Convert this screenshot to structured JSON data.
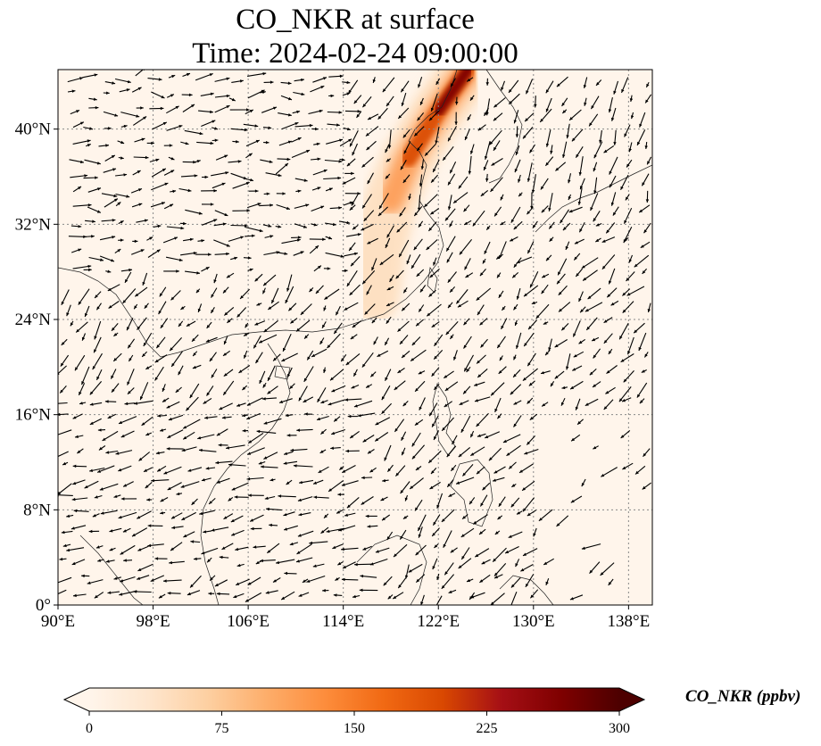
{
  "title": {
    "line1": "CO_NKR at surface",
    "line2": "Time: 2024-02-24 09:00:00"
  },
  "map": {
    "lon_range": [
      90,
      140
    ],
    "lat_range": [
      0,
      45
    ],
    "lon_ticks": [
      {
        "value": 90,
        "label": "90°E"
      },
      {
        "value": 98,
        "label": "98°E"
      },
      {
        "value": 106,
        "label": "106°E"
      },
      {
        "value": 114,
        "label": "114°E"
      },
      {
        "value": 122,
        "label": "122°E"
      },
      {
        "value": 130,
        "label": "130°E"
      },
      {
        "value": 138,
        "label": "138°E"
      }
    ],
    "lat_ticks": [
      {
        "value": 0,
        "label": "0°"
      },
      {
        "value": 8,
        "label": "8°N"
      },
      {
        "value": 16,
        "label": "16°N"
      },
      {
        "value": 24,
        "label": "24°N"
      },
      {
        "value": 32,
        "label": "32°N"
      },
      {
        "value": 40,
        "label": "40°N"
      }
    ],
    "gridlines": "dotted",
    "field_colors": [
      "#fff5eb",
      "#fdd0a2",
      "#fd8d3c",
      "#d94801",
      "#7f0000"
    ],
    "plume_band": [
      [
        124.5,
        45
      ],
      [
        122,
        41.5
      ],
      [
        119.5,
        37.5
      ],
      [
        118,
        34
      ],
      [
        117,
        30
      ],
      [
        116.5,
        26
      ]
    ]
  },
  "colorbar": {
    "label": "CO_NKR (ppbv)",
    "min": 0,
    "max": 300,
    "ticks": [
      {
        "value": 0,
        "label": "0"
      },
      {
        "value": 75,
        "label": "75"
      },
      {
        "value": 150,
        "label": "150"
      },
      {
        "value": 225,
        "label": "225"
      },
      {
        "value": 300,
        "label": "300"
      }
    ],
    "colors": [
      "#fff5eb",
      "#fee6ce",
      "#fdd0a2",
      "#fdae6b",
      "#fd8d3c",
      "#f16913",
      "#d94801",
      "#a50f15",
      "#7f0000",
      "#4d0000"
    ],
    "extend": "both"
  }
}
